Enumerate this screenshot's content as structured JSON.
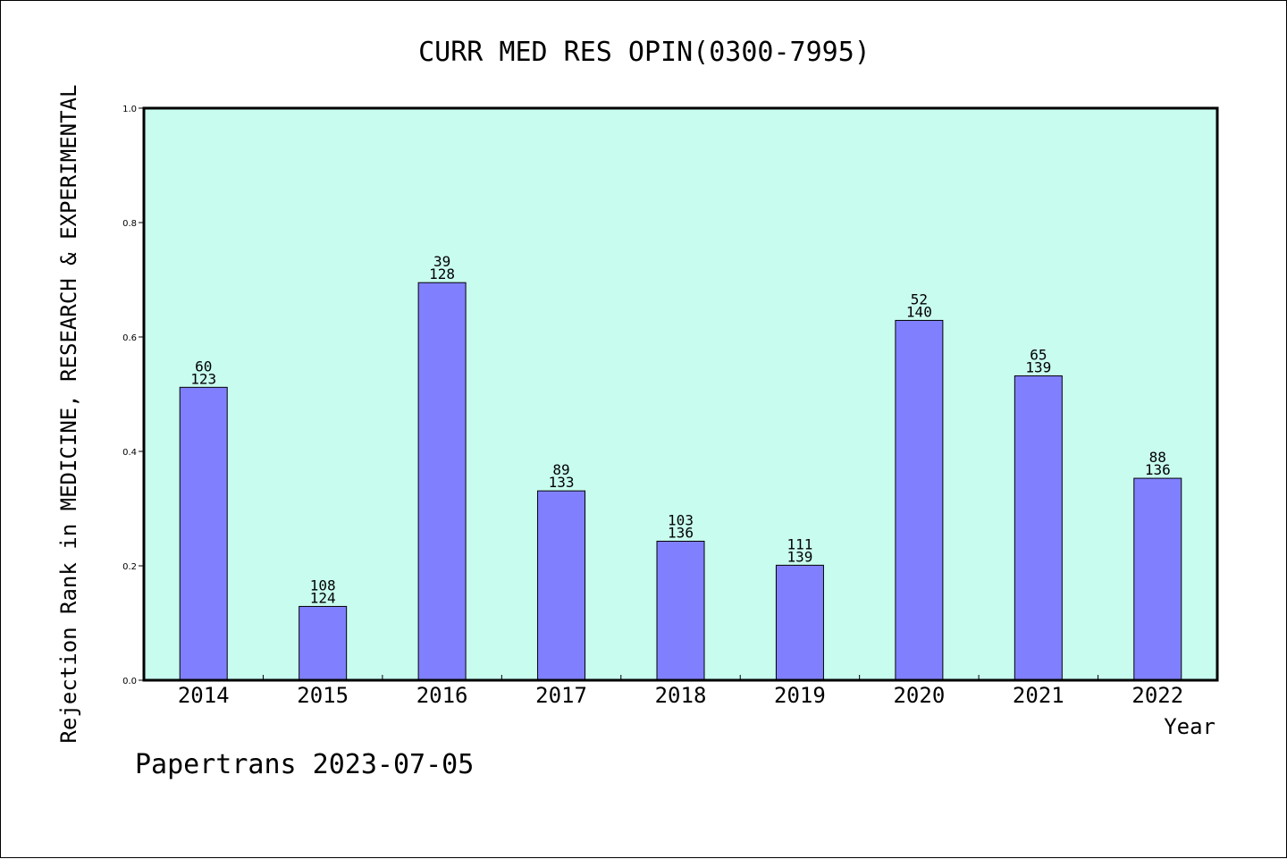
{
  "chart_data": {
    "type": "bar",
    "title": "CURR MED RES OPIN(0300-7995)",
    "ylabel": "Rejection Rank in MEDICINE, RESEARCH & EXPERIMENTAL",
    "xlabel": "Year",
    "footer": "Papertrans 2023-07-05",
    "ylim": [
      0,
      1.0
    ],
    "yticks": [
      "0.0",
      "0.2",
      "0.4",
      "0.6",
      "0.8",
      "1.0"
    ],
    "categories": [
      "2014",
      "2015",
      "2016",
      "2017",
      "2018",
      "2019",
      "2020",
      "2021",
      "2022"
    ],
    "values": [
      0.512,
      0.129,
      0.695,
      0.331,
      0.243,
      0.201,
      0.629,
      0.532,
      0.353
    ],
    "rank_labels": [
      "60",
      "108",
      "39",
      "89",
      "103",
      "111",
      "52",
      "65",
      "88"
    ],
    "total_labels": [
      "123",
      "124",
      "128",
      "133",
      "136",
      "139",
      "140",
      "139",
      "136"
    ],
    "grid": false,
    "colors": {
      "plot_bg": "#c8fcee",
      "bar_fill": "#8080ff",
      "axis": "#000000"
    }
  }
}
